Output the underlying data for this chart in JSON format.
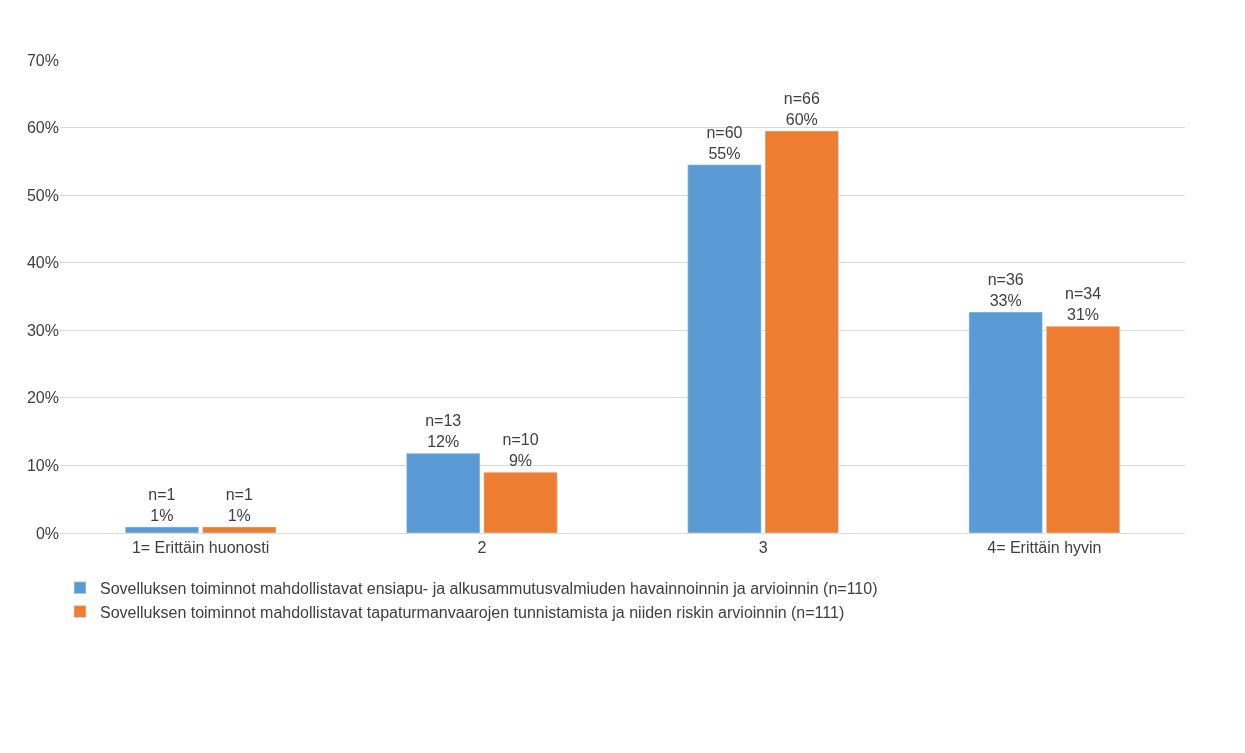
{
  "chart_data": {
    "type": "bar",
    "categories": [
      "1= Erittäin huonosti",
      "2",
      "3",
      "4= Erittäin hyvin"
    ],
    "series": [
      {
        "name": "Sovelluksen toiminnot mahdollistavat ensiapu- ja alkusammutusvalmiuden havainnoinnin ja arvioinnin (n=110)",
        "color": "#5b9bd5",
        "values": [
          0.9,
          11.8,
          54.5,
          32.7
        ],
        "value_labels": [
          "n=1\n1%",
          "n=13\n12%",
          "n=60\n55%",
          "n=36\n33%"
        ]
      },
      {
        "name": "Sovelluksen toiminnot mahdollistavat tapaturmanvaarojen tunnistamista ja niiden riskin arvioinnin (n=111)",
        "color": "#ed7d31",
        "values": [
          0.9,
          9.0,
          59.5,
          30.6
        ],
        "value_labels": [
          "n=1\n1%",
          "n=10\n9%",
          "n=66\n60%",
          "n=34\n31%"
        ]
      }
    ],
    "ylim": [
      0,
      70
    ],
    "yticks": [
      {
        "value": 0,
        "label": "0%"
      },
      {
        "value": 10,
        "label": "10%"
      },
      {
        "value": 20,
        "label": "20%"
      },
      {
        "value": 30,
        "label": "30%"
      },
      {
        "value": 40,
        "label": "40%"
      },
      {
        "value": 50,
        "label": "50%"
      },
      {
        "value": 60,
        "label": "60%"
      },
      {
        "value": 70,
        "label": "70%"
      }
    ],
    "grid": "y",
    "legend": "bottom"
  }
}
